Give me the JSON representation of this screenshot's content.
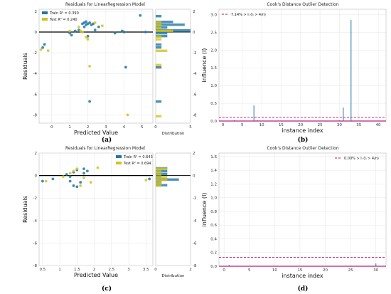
{
  "chart_data": [
    {
      "id": "a",
      "type": "scatter",
      "title": "Residuals for LinearRegression Model",
      "xlabel": "Predicted Value",
      "ylabel": "Residuals",
      "xlim": [
        -0.7,
        5.6
      ],
      "ylim": [
        -8.8,
        2.2
      ],
      "xticks": [
        0,
        1,
        2,
        3,
        4,
        5
      ],
      "yticks": [
        2,
        0,
        -2,
        -4,
        -6,
        -8
      ],
      "caption": "(a)",
      "legend": {
        "position": "top-left",
        "entries": [
          "Train R² = 0.390",
          "Test R² = 0.240"
        ]
      },
      "hist_label": "Distribution",
      "hist_xticks": [
        0,
        5
      ],
      "colors": {
        "train": "#1f77a8",
        "test": "#d4c31b"
      },
      "series": [
        {
          "name": "Train R² = 0.390",
          "points": [
            [
              -0.4,
              -1.2
            ],
            [
              -0.5,
              -1.5
            ],
            [
              1.0,
              -0.1
            ],
            [
              1.1,
              -0.3
            ],
            [
              1.3,
              0.1
            ],
            [
              1.5,
              0.2
            ],
            [
              1.7,
              0.8
            ],
            [
              1.8,
              0.5
            ],
            [
              1.8,
              0.9
            ],
            [
              1.9,
              0.7
            ],
            [
              1.9,
              1.0
            ],
            [
              2.0,
              -0.4
            ],
            [
              2.0,
              0.8
            ],
            [
              2.1,
              0.9
            ],
            [
              2.1,
              -6.7
            ],
            [
              2.2,
              0.7
            ],
            [
              2.3,
              0.8
            ],
            [
              2.4,
              0.2
            ],
            [
              2.6,
              0.5
            ],
            [
              3.5,
              -0.1
            ],
            [
              3.9,
              0.1
            ],
            [
              4.0,
              0.0
            ],
            [
              4.1,
              -3.4
            ],
            [
              4.9,
              1.6
            ],
            [
              5.2,
              0.0
            ]
          ]
        },
        {
          "name": "Test R² = 0.240",
          "points": [
            [
              -0.6,
              -1.7
            ],
            [
              -0.2,
              -1.8
            ],
            [
              1.0,
              0.1
            ],
            [
              1.5,
              0.5
            ],
            [
              1.6,
              0.1
            ],
            [
              1.7,
              0.0
            ],
            [
              1.9,
              -0.5
            ],
            [
              2.0,
              -0.7
            ],
            [
              2.1,
              -3.3
            ],
            [
              2.4,
              0.9
            ],
            [
              2.8,
              0.6
            ],
            [
              4.2,
              -8.0
            ]
          ]
        }
      ]
    },
    {
      "id": "b",
      "type": "bar",
      "title": "Cook's Distance Outlier Detection",
      "xlabel": "instance index",
      "ylabel": "influence (I)",
      "xlim": [
        -1,
        42
      ],
      "ylim": [
        0,
        3.15
      ],
      "xticks": [
        0,
        5,
        10,
        15,
        20,
        25,
        30,
        35,
        40
      ],
      "yticks": [
        0.0,
        0.5,
        1.0,
        1.5,
        2.0,
        2.5,
        3.0
      ],
      "threshold": 0.1,
      "legend": "7.14% > Iᵢ (Iᵢ > 4/n)",
      "caption": "(b)",
      "values": [
        0.01,
        0.01,
        0.01,
        0.03,
        0.01,
        0.01,
        0.01,
        0.01,
        0.44,
        0.02,
        0.01,
        0.01,
        0.01,
        0.01,
        0.01,
        0.01,
        0.01,
        0.01,
        0.01,
        0.01,
        0.01,
        0.01,
        0.01,
        0.01,
        0.01,
        0.01,
        0.01,
        0.01,
        0.01,
        0.01,
        0.02,
        0.38,
        0.01,
        2.85,
        0.01,
        0.01,
        0.01,
        0.01,
        0.01,
        0.01,
        0.01,
        0.01
      ]
    },
    {
      "id": "c",
      "type": "scatter",
      "title": "Residuals for LinearRegression Model",
      "xlabel": "Predicted Value",
      "ylabel": "Residuals",
      "xlim": [
        0.4,
        3.7
      ],
      "ylim": [
        -8.0,
        2.0
      ],
      "xticks": [
        0.5,
        1.0,
        1.5,
        2.0,
        2.5,
        3.0,
        3.5
      ],
      "yticks": [
        2,
        0,
        -2,
        -4,
        -6,
        -8
      ],
      "caption": "(c)",
      "legend": {
        "position": "top-right",
        "entries": [
          "Train R² = 0.643",
          "Test R² = 0.694"
        ]
      },
      "hist_label": "Distribution",
      "hist_xticks": [
        0,
        2
      ],
      "colors": {
        "train": "#1f77a8",
        "test": "#d4c31b"
      },
      "series": [
        {
          "name": "Train R² = 0.643",
          "points": [
            [
              0.5,
              -0.5
            ],
            [
              0.8,
              -0.3
            ],
            [
              1.2,
              0.1
            ],
            [
              1.3,
              -0.1
            ],
            [
              1.3,
              -0.5
            ],
            [
              1.4,
              -0.9
            ],
            [
              1.4,
              0.3
            ],
            [
              1.5,
              0.5
            ],
            [
              1.5,
              -1.0
            ],
            [
              1.6,
              -0.6
            ],
            [
              1.7,
              0.6
            ],
            [
              1.7,
              0.2
            ],
            [
              1.8,
              0.4
            ],
            [
              3.6,
              -0.3
            ]
          ]
        },
        {
          "name": "Test R² = 0.694",
          "points": [
            [
              0.6,
              -0.5
            ],
            [
              1.1,
              -0.1
            ],
            [
              1.3,
              0.2
            ],
            [
              1.4,
              0.4
            ],
            [
              1.5,
              0.6
            ],
            [
              1.6,
              -0.9
            ],
            [
              1.7,
              -0.2
            ],
            [
              1.9,
              -0.6
            ],
            [
              2.1,
              0.7
            ],
            [
              3.5,
              -0.4
            ]
          ]
        }
      ]
    },
    {
      "id": "d",
      "type": "bar",
      "title": "Cook's Distance Outlier Detection",
      "xlabel": "instance index",
      "ylabel": "influence (I)",
      "xlim": [
        -1,
        32
      ],
      "ylim": [
        0,
        1.65
      ],
      "xticks": [
        0,
        5,
        10,
        15,
        20,
        25,
        30
      ],
      "yticks": [
        0.0,
        0.2,
        0.4,
        0.6,
        0.8,
        1.0,
        1.2,
        1.4,
        1.6
      ],
      "threshold": 0.13,
      "legend": "0.00% > Iᵢ (Iᵢ > 4/n)",
      "caption": "(d)",
      "values": [
        0.005,
        0.02,
        0.005,
        0.005,
        0.005,
        0.005,
        0.005,
        0.005,
        0.005,
        0.005,
        0.005,
        0.005,
        0.005,
        0.005,
        0.005,
        0.005,
        0.005,
        0.005,
        0.005,
        0.005,
        0.005,
        0.005,
        0.005,
        0.005,
        0.005,
        0.01,
        0.005,
        0.005,
        0.005,
        0.005,
        0.04,
        0.005
      ]
    }
  ]
}
